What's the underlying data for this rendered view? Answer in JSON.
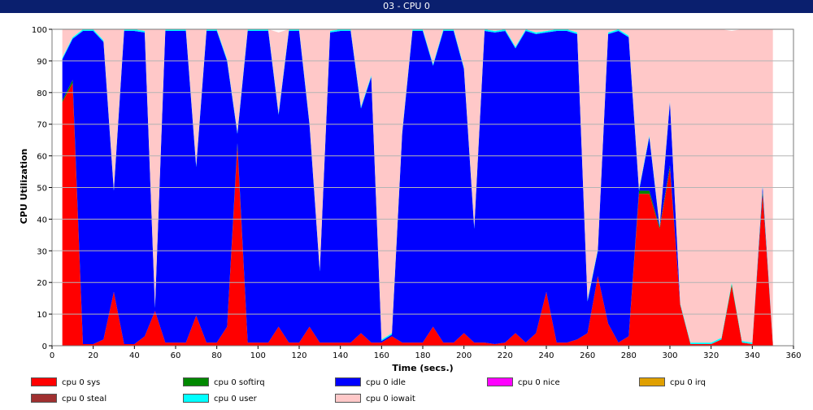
{
  "window": {
    "title": "03 - CPU 0"
  },
  "chart_data": {
    "type": "area",
    "stacked": true,
    "xlabel": "Time (secs.)",
    "ylabel": "CPU Utilization",
    "xlim": [
      0,
      360
    ],
    "ylim": [
      0,
      100
    ],
    "xticks": [
      0,
      20,
      40,
      60,
      80,
      100,
      120,
      140,
      160,
      180,
      200,
      220,
      240,
      260,
      280,
      300,
      320,
      340,
      360
    ],
    "yticks": [
      0,
      10,
      20,
      30,
      40,
      50,
      60,
      70,
      80,
      90,
      100
    ],
    "grid": true,
    "legend_position": "bottom",
    "x": [
      5,
      10,
      15,
      20,
      25,
      30,
      35,
      40,
      45,
      50,
      55,
      60,
      65,
      70,
      75,
      80,
      85,
      90,
      95,
      100,
      105,
      110,
      115,
      120,
      125,
      130,
      135,
      140,
      145,
      150,
      155,
      160,
      165,
      170,
      175,
      180,
      185,
      190,
      195,
      200,
      205,
      210,
      215,
      220,
      225,
      230,
      235,
      240,
      245,
      250,
      255,
      260,
      265,
      270,
      275,
      280,
      285,
      290,
      295,
      300,
      305,
      310,
      315,
      320,
      325,
      330,
      335,
      340,
      345,
      350
    ],
    "series": [
      {
        "name": "cpu 0 sys",
        "color": "#ff0000",
        "values": [
          77,
          83,
          0.5,
          0.5,
          2,
          17,
          0.5,
          0.5,
          3,
          11,
          1,
          1,
          1,
          9.5,
          1,
          1,
          6,
          63,
          1,
          1,
          1,
          6,
          1,
          1,
          6,
          1,
          1,
          1,
          1,
          4,
          1,
          1,
          3,
          1,
          1,
          1,
          6,
          1,
          1,
          4,
          1,
          1,
          0.5,
          1,
          4,
          1,
          4,
          17,
          1,
          1,
          2,
          4,
          22,
          7,
          1,
          3,
          48,
          48,
          37,
          56,
          13,
          0.5,
          0.5,
          0.5,
          2,
          19,
          1,
          0.5,
          48,
          0.5
        ]
      },
      {
        "name": "cpu 0 softirq",
        "color": "#008800",
        "values": [
          0.5,
          1,
          0,
          0,
          0,
          0,
          0,
          0,
          0,
          0,
          0,
          0,
          0,
          0,
          0,
          0,
          0,
          1,
          0,
          0,
          0,
          0,
          0,
          0,
          0,
          0,
          0,
          0,
          0,
          0,
          0,
          0,
          0,
          0,
          0,
          0,
          0,
          0,
          0,
          0,
          0,
          0,
          0,
          0,
          0,
          0,
          0,
          0,
          0,
          0,
          0,
          0,
          0,
          0,
          0,
          0,
          1,
          1,
          0.5,
          1,
          0,
          0,
          0,
          0,
          0,
          0.5,
          0,
          0,
          1,
          0
        ]
      },
      {
        "name": "cpu 0 idle",
        "color": "#0000ff",
        "values": [
          13,
          13,
          99,
          99,
          94,
          32,
          99,
          99,
          96,
          1,
          98.5,
          98.5,
          98.5,
          47,
          98.5,
          98.5,
          84,
          3,
          98.5,
          98.5,
          98.5,
          67,
          98.5,
          98.5,
          64,
          22.5,
          98,
          98.5,
          98.5,
          71,
          84,
          0.5,
          0.5,
          66,
          98.5,
          98.5,
          82.5,
          98.5,
          98.5,
          83.5,
          36,
          98.5,
          98.5,
          98.5,
          90,
          98.5,
          94.5,
          82,
          98.5,
          98.5,
          96.5,
          10,
          8,
          91.5,
          98.5,
          94.5,
          0,
          17,
          0,
          20,
          0,
          0,
          0,
          0,
          0,
          0,
          0,
          0,
          1.5,
          0
        ]
      },
      {
        "name": "cpu 0 nice",
        "color": "#ff00ff",
        "values": [
          0,
          0,
          0,
          0,
          0,
          0,
          0,
          0,
          0,
          0,
          0,
          0,
          0,
          0,
          0,
          0,
          0,
          0,
          0,
          0,
          0,
          0,
          0,
          0,
          0,
          0,
          0,
          0,
          0,
          0,
          0,
          0,
          0,
          0,
          0,
          0,
          0,
          0,
          0,
          0,
          0,
          0,
          0,
          0,
          0,
          0,
          0,
          0,
          0,
          0,
          0,
          0,
          0,
          0,
          0,
          0,
          0,
          0,
          0,
          0,
          0,
          0,
          0,
          0,
          0,
          0,
          0,
          0,
          0,
          0
        ]
      },
      {
        "name": "cpu 0 irq",
        "color": "#e0a000",
        "values": [
          0,
          0,
          0,
          0,
          0,
          0,
          0,
          0,
          0,
          0,
          0,
          0,
          0,
          0,
          0,
          0,
          0,
          0,
          0,
          0,
          0,
          0,
          0,
          0,
          0,
          0,
          0,
          0,
          0,
          0,
          0,
          0,
          0,
          0,
          0,
          0,
          0,
          0,
          0,
          0,
          0,
          0,
          0,
          0,
          0,
          0,
          0,
          0,
          0,
          0,
          0,
          0,
          0,
          0,
          0,
          0,
          0,
          0,
          0,
          0,
          0,
          0,
          0,
          0,
          0,
          0,
          0,
          0,
          0,
          0
        ]
      },
      {
        "name": "cpu 0 steal",
        "color": "#a03030",
        "values": [
          0,
          0,
          0,
          0,
          0,
          0,
          0,
          0,
          0,
          0,
          0,
          0,
          0,
          0,
          0,
          0,
          0,
          0,
          0,
          0,
          0,
          0,
          0,
          0,
          0,
          0,
          0,
          0,
          0,
          0,
          0,
          0,
          0,
          0,
          0,
          0,
          0,
          0,
          0,
          0,
          0,
          0,
          0,
          0,
          0,
          0,
          0,
          0,
          0,
          0,
          0,
          0,
          0,
          0,
          0,
          0,
          0,
          0,
          0,
          0,
          0,
          0,
          0,
          0,
          0,
          0,
          0,
          0,
          0,
          0
        ]
      },
      {
        "name": "cpu 0 user",
        "color": "#00ffff",
        "values": [
          0.5,
          0.5,
          0.5,
          0.5,
          0.5,
          0.5,
          0.5,
          0.5,
          0.5,
          0.5,
          0.5,
          0.5,
          0.5,
          0.5,
          0.5,
          0.5,
          0.5,
          0.5,
          0.5,
          0.5,
          0.5,
          0.5,
          0.5,
          0.5,
          0.5,
          0.5,
          0.5,
          0.5,
          0.5,
          0.5,
          0.5,
          0.5,
          0.5,
          0.5,
          0.5,
          0.5,
          0.5,
          0.5,
          0.5,
          0.5,
          0.5,
          0.5,
          0.5,
          0.5,
          0.5,
          0.5,
          0.5,
          0.5,
          0.5,
          0.5,
          0.5,
          0.5,
          0.5,
          0.5,
          0.5,
          0.5,
          0.5,
          0.5,
          0.5,
          0.5,
          0.5,
          0.5,
          0.5,
          0.5,
          0.5,
          0.5,
          0.5,
          0.5,
          0.5,
          0.5
        ]
      },
      {
        "name": "cpu 0 iowait",
        "color": "#ffc8c8",
        "values": [
          9,
          2.5,
          0,
          0,
          3.5,
          50.5,
          0,
          0,
          0.5,
          87.5,
          0,
          0,
          0,
          43,
          0,
          0,
          9.5,
          32.5,
          0,
          0,
          0,
          25.5,
          0,
          0,
          29.5,
          76,
          0.5,
          0,
          0,
          24.5,
          14.5,
          98,
          96,
          32.5,
          0,
          0,
          11,
          0,
          0,
          12,
          62.5,
          0,
          0.5,
          0,
          5.5,
          0,
          1,
          0.5,
          0,
          0,
          1,
          85.5,
          69.5,
          1,
          0,
          2,
          50.5,
          33.5,
          62,
          22.5,
          86.5,
          99,
          99,
          99,
          97.5,
          79.5,
          98.5,
          99,
          49,
          99
        ]
      }
    ]
  }
}
